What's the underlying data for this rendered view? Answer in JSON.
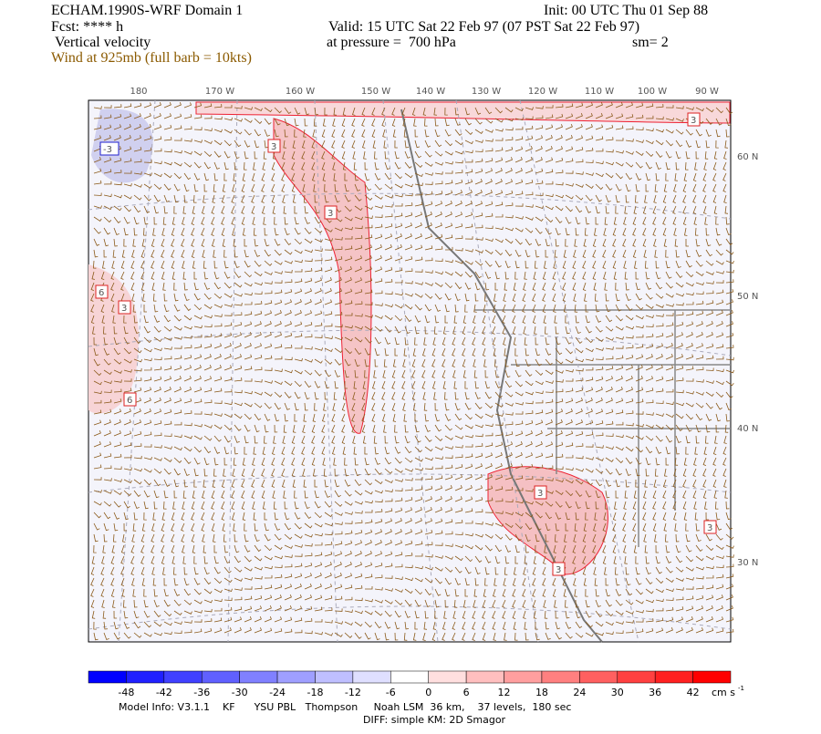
{
  "header": {
    "title": "ECHAM.1990S-WRF Domain 1",
    "init": "Init: 00 UTC Thu 01 Sep 88",
    "fcst": "Fcst: **** h",
    "valid": "Valid: 15 UTC Sat 22 Feb 97 (07 PST Sat 22 Feb 97)",
    "field": "Vertical velocity",
    "pressure": "at pressure =  700 hPa",
    "smooth": "sm= 2",
    "wind": "Wind at 925mb (full barb = 10kts)"
  },
  "map": {
    "lon_labels": [
      "180",
      "170 W",
      "160 W",
      "150 W",
      "140 W",
      "130 W",
      "120 W",
      "110 W",
      "100 W",
      "90 W"
    ],
    "lat_labels": [
      "60 N",
      "50 N",
      "40 N",
      "30 N"
    ],
    "contour_labels": [
      "-3",
      "3",
      "3",
      "3",
      "6",
      "3",
      "6",
      "3",
      "3",
      "3"
    ]
  },
  "colorbar": {
    "labels": [
      -48,
      -42,
      -36,
      -30,
      -24,
      -18,
      -12,
      -6,
      0,
      6,
      12,
      18,
      24,
      30,
      36,
      42
    ],
    "units": "cm s",
    "units_exp": "-1"
  },
  "footer": {
    "line1": "Model Info: V3.1.1    KF      YSU PBL   Thompson     Noah LSM  36 km,    37 levels,  180 sec",
    "line2": "DIFF: simple KM: 2D Smagor"
  }
}
